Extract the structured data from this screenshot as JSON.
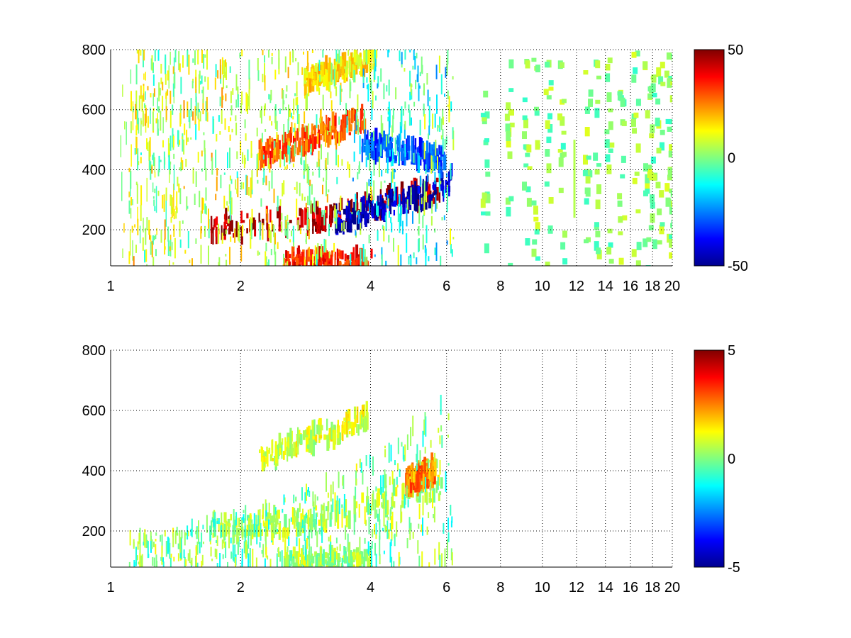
{
  "chart_data": [
    {
      "type": "heatmap",
      "title": "",
      "xlabel": "",
      "ylabel": "",
      "xscale": "log",
      "xlim": [
        1,
        20
      ],
      "ylim": [
        80,
        800
      ],
      "x_ticks": [
        1,
        2,
        4,
        6,
        8,
        10,
        12,
        14,
        16,
        18,
        20
      ],
      "x_tick_labels": [
        "1",
        "2",
        "4",
        "6",
        "8",
        "10",
        "12",
        "14",
        "16",
        "18",
        "20"
      ],
      "y_ticks": [
        200,
        400,
        600,
        800
      ],
      "y_tick_labels": [
        "200",
        "400",
        "600",
        "800"
      ],
      "grid": true,
      "colormap": "jet",
      "clim": [
        -50,
        50
      ],
      "colorbar_ticks": [
        50,
        0,
        -50
      ],
      "colorbar_tick_labels": [
        "50",
        "0",
        "-50"
      ],
      "features": [
        {
          "kind": "ridge",
          "x": [
            1.7,
            2.5,
            3.2,
            3.8,
            4.5,
            5.2,
            5.8
          ],
          "y": [
            210,
            225,
            245,
            270,
            300,
            320,
            335
          ],
          "value": 45
        },
        {
          "kind": "ridge",
          "x": [
            3.3,
            4.0,
            4.8,
            5.5,
            6.2
          ],
          "y": [
            230,
            270,
            300,
            330,
            370
          ],
          "value": -45
        },
        {
          "kind": "ridge",
          "x": [
            2.2,
            2.8,
            3.4,
            3.9
          ],
          "y": [
            450,
            500,
            540,
            580
          ],
          "value": 30
        },
        {
          "kind": "ridge",
          "x": [
            3.8,
            4.5,
            5.2,
            5.9
          ],
          "y": [
            480,
            470,
            450,
            430
          ],
          "value": -30
        },
        {
          "kind": "ridge",
          "x": [
            2.8,
            3.5,
            4.1
          ],
          "y": [
            700,
            740,
            780
          ],
          "value": 15
        },
        {
          "kind": "ridge",
          "x": [
            2.5,
            3.2,
            4.0
          ],
          "y": [
            90,
            88,
            90
          ],
          "value": 35
        },
        {
          "kind": "band",
          "x": [
            1.05,
            1.4
          ],
          "value": 5
        },
        {
          "kind": "line",
          "x": [
            11.8,
            11.8
          ],
          "y": [
            240,
            500
          ],
          "value": 5
        }
      ],
      "scatter_columns": [
        7.3,
        8.3,
        9.1,
        9.5,
        10.2,
        11.0,
        12.6,
        13.2,
        14.1,
        15.1,
        16.3,
        17.3,
        17.8,
        18.5,
        19.4,
        19.8
      ],
      "data_extent_x": [
        1.1,
        20
      ]
    },
    {
      "type": "heatmap",
      "title": "",
      "xlabel": "",
      "ylabel": "",
      "xscale": "log",
      "xlim": [
        1,
        20
      ],
      "ylim": [
        80,
        800
      ],
      "x_ticks": [
        1,
        2,
        4,
        6,
        8,
        10,
        12,
        14,
        16,
        18,
        20
      ],
      "x_tick_labels": [
        "1",
        "2",
        "4",
        "6",
        "8",
        "10",
        "12",
        "14",
        "16",
        "18",
        "20"
      ],
      "y_ticks": [
        200,
        400,
        600,
        800
      ],
      "y_tick_labels": [
        "200",
        "400",
        "600",
        "800"
      ],
      "grid": true,
      "colormap": "jet",
      "clim": [
        -5,
        5
      ],
      "colorbar_ticks": [
        5,
        0,
        -5
      ],
      "colorbar_tick_labels": [
        "5",
        "0",
        "-5"
      ],
      "features": [
        {
          "kind": "ridge",
          "x": [
            1.7,
            2.5,
            3.2,
            3.8,
            4.5,
            5.2,
            5.8
          ],
          "y": [
            210,
            225,
            250,
            280,
            310,
            330,
            340
          ],
          "value": 0.5
        },
        {
          "kind": "ridge",
          "x": [
            2.2,
            2.8,
            3.4,
            3.9
          ],
          "y": [
            450,
            500,
            540,
            580
          ],
          "value": 0.8
        },
        {
          "kind": "ridge",
          "x": [
            2.5,
            3.2,
            4.0
          ],
          "y": [
            90,
            88,
            90
          ],
          "value": 0.2
        },
        {
          "kind": "ridge",
          "x": [
            4.8,
            5.2,
            5.6
          ],
          "y": [
            360,
            380,
            400
          ],
          "value": 2.5
        }
      ],
      "scatter_columns": [],
      "data_extent_x": [
        1.1,
        7.0
      ]
    }
  ]
}
